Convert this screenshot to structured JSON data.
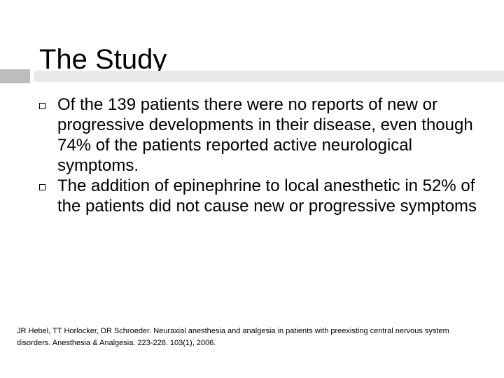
{
  "slide": {
    "title": "The Study",
    "bullets": [
      {
        "icon": "square-bullet-icon",
        "text": "Of the 139 patients there were no reports of new or progressive developments in their disease, even though 74% of the patients reported active neurological symptoms."
      },
      {
        "icon": "square-bullet-icon",
        "text": "The addition of epinephrine to local anesthetic in 52% of the patients did not cause new or progressive symptoms"
      }
    ],
    "citation": "JR Hebel, TT Horlocker, DR Schroeder.  Neuraxial anesthesia and analgesia in patients with preexisting central nervous system disorders.  Anesthesia & Analgesia. 223-228. 103(1), 2006."
  },
  "colors": {
    "rule_dark": "#bdbdbd",
    "rule_light": "#e9e9e9"
  }
}
